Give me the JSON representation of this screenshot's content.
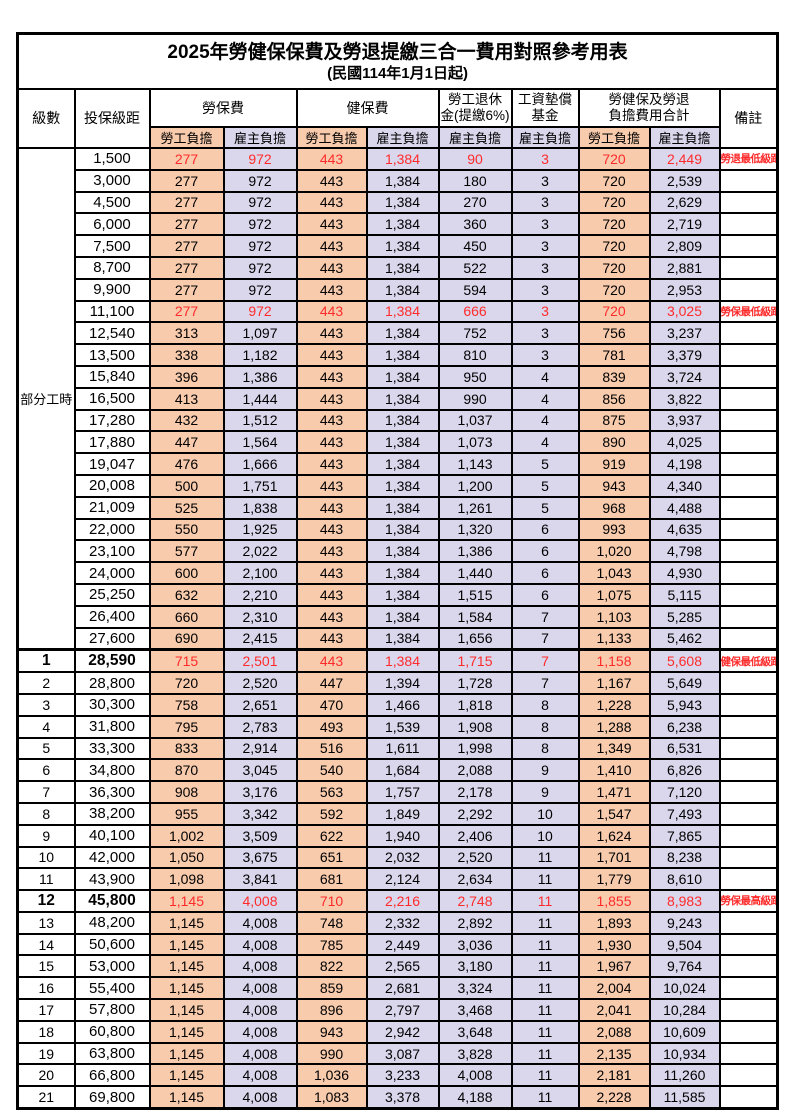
{
  "title": "2025年勞健保保費及勞退提繳三合一費用對照參考用表",
  "subtitle": "(民國114年1月1日起)",
  "colors": {
    "employee_bg": "#F8CBAD",
    "employer_bg": "#DAD7EC",
    "highlight_text": "#FF2B2B",
    "border": "#000000"
  },
  "header": {
    "level": "級數",
    "bracket": "投保級距",
    "labor_ins": "勞保費",
    "health_ins": "健保費",
    "pension_line1": "勞工退休",
    "pension_line2": "金(提繳6%)",
    "wage_fund_line1": "工資墊償",
    "wage_fund_line2": "基金",
    "total_line1": "勞健保及勞退",
    "total_line2": "負擔費用合計",
    "remark": "備註",
    "employee": "勞工負擔",
    "employer": "雇主負擔"
  },
  "part_time_label": "部分工時",
  "part_time_span": 23,
  "chart_data": {
    "type": "table",
    "title": "2025年勞健保保費及勞退提繳三合一費用對照參考用表 (民國114年1月1日起)",
    "columns": [
      "級數",
      "投保級距",
      "勞保費-勞工負擔",
      "勞保費-雇主負擔",
      "健保費-勞工負擔",
      "健保費-雇主負擔",
      "勞工退休金(提繳6%)-雇主負擔",
      "工資墊償基金-雇主負擔",
      "合計-勞工負擔",
      "合計-雇主負擔",
      "備註"
    ]
  },
  "rows": [
    {
      "level": "",
      "bracket": "1,500",
      "li_emp": "277",
      "li_er": "972",
      "hi_emp": "443",
      "hi_er": "1,384",
      "pension": "90",
      "fund": "3",
      "tot_emp": "720",
      "tot_er": "2,449",
      "remark": "勞退最低級距",
      "red": true,
      "bold": false,
      "thick": false
    },
    {
      "level": "",
      "bracket": "3,000",
      "li_emp": "277",
      "li_er": "972",
      "hi_emp": "443",
      "hi_er": "1,384",
      "pension": "180",
      "fund": "3",
      "tot_emp": "720",
      "tot_er": "2,539",
      "remark": "",
      "red": false,
      "bold": false,
      "thick": false
    },
    {
      "level": "",
      "bracket": "4,500",
      "li_emp": "277",
      "li_er": "972",
      "hi_emp": "443",
      "hi_er": "1,384",
      "pension": "270",
      "fund": "3",
      "tot_emp": "720",
      "tot_er": "2,629",
      "remark": "",
      "red": false,
      "bold": false,
      "thick": false
    },
    {
      "level": "",
      "bracket": "6,000",
      "li_emp": "277",
      "li_er": "972",
      "hi_emp": "443",
      "hi_er": "1,384",
      "pension": "360",
      "fund": "3",
      "tot_emp": "720",
      "tot_er": "2,719",
      "remark": "",
      "red": false,
      "bold": false,
      "thick": false
    },
    {
      "level": "",
      "bracket": "7,500",
      "li_emp": "277",
      "li_er": "972",
      "hi_emp": "443",
      "hi_er": "1,384",
      "pension": "450",
      "fund": "3",
      "tot_emp": "720",
      "tot_er": "2,809",
      "remark": "",
      "red": false,
      "bold": false,
      "thick": false
    },
    {
      "level": "",
      "bracket": "8,700",
      "li_emp": "277",
      "li_er": "972",
      "hi_emp": "443",
      "hi_er": "1,384",
      "pension": "522",
      "fund": "3",
      "tot_emp": "720",
      "tot_er": "2,881",
      "remark": "",
      "red": false,
      "bold": false,
      "thick": false
    },
    {
      "level": "",
      "bracket": "9,900",
      "li_emp": "277",
      "li_er": "972",
      "hi_emp": "443",
      "hi_er": "1,384",
      "pension": "594",
      "fund": "3",
      "tot_emp": "720",
      "tot_er": "2,953",
      "remark": "",
      "red": false,
      "bold": false,
      "thick": false
    },
    {
      "level": "",
      "bracket": "11,100",
      "li_emp": "277",
      "li_er": "972",
      "hi_emp": "443",
      "hi_er": "1,384",
      "pension": "666",
      "fund": "3",
      "tot_emp": "720",
      "tot_er": "3,025",
      "remark": "勞保最低級距",
      "red": true,
      "bold": false,
      "thick": false
    },
    {
      "level": "",
      "bracket": "12,540",
      "li_emp": "313",
      "li_er": "1,097",
      "hi_emp": "443",
      "hi_er": "1,384",
      "pension": "752",
      "fund": "3",
      "tot_emp": "756",
      "tot_er": "3,237",
      "remark": "",
      "red": false,
      "bold": false,
      "thick": false
    },
    {
      "level": "",
      "bracket": "13,500",
      "li_emp": "338",
      "li_er": "1,182",
      "hi_emp": "443",
      "hi_er": "1,384",
      "pension": "810",
      "fund": "3",
      "tot_emp": "781",
      "tot_er": "3,379",
      "remark": "",
      "red": false,
      "bold": false,
      "thick": false
    },
    {
      "level": "",
      "bracket": "15,840",
      "li_emp": "396",
      "li_er": "1,386",
      "hi_emp": "443",
      "hi_er": "1,384",
      "pension": "950",
      "fund": "4",
      "tot_emp": "839",
      "tot_er": "3,724",
      "remark": "",
      "red": false,
      "bold": false,
      "thick": false
    },
    {
      "level": "",
      "bracket": "16,500",
      "li_emp": "413",
      "li_er": "1,444",
      "hi_emp": "443",
      "hi_er": "1,384",
      "pension": "990",
      "fund": "4",
      "tot_emp": "856",
      "tot_er": "3,822",
      "remark": "",
      "red": false,
      "bold": false,
      "thick": false
    },
    {
      "level": "",
      "bracket": "17,280",
      "li_emp": "432",
      "li_er": "1,512",
      "hi_emp": "443",
      "hi_er": "1,384",
      "pension": "1,037",
      "fund": "4",
      "tot_emp": "875",
      "tot_er": "3,937",
      "remark": "",
      "red": false,
      "bold": false,
      "thick": false
    },
    {
      "level": "",
      "bracket": "17,880",
      "li_emp": "447",
      "li_er": "1,564",
      "hi_emp": "443",
      "hi_er": "1,384",
      "pension": "1,073",
      "fund": "4",
      "tot_emp": "890",
      "tot_er": "4,025",
      "remark": "",
      "red": false,
      "bold": false,
      "thick": false
    },
    {
      "level": "",
      "bracket": "19,047",
      "li_emp": "476",
      "li_er": "1,666",
      "hi_emp": "443",
      "hi_er": "1,384",
      "pension": "1,143",
      "fund": "5",
      "tot_emp": "919",
      "tot_er": "4,198",
      "remark": "",
      "red": false,
      "bold": false,
      "thick": false
    },
    {
      "level": "",
      "bracket": "20,008",
      "li_emp": "500",
      "li_er": "1,751",
      "hi_emp": "443",
      "hi_er": "1,384",
      "pension": "1,200",
      "fund": "5",
      "tot_emp": "943",
      "tot_er": "4,340",
      "remark": "",
      "red": false,
      "bold": false,
      "thick": false
    },
    {
      "level": "",
      "bracket": "21,009",
      "li_emp": "525",
      "li_er": "1,838",
      "hi_emp": "443",
      "hi_er": "1,384",
      "pension": "1,261",
      "fund": "5",
      "tot_emp": "968",
      "tot_er": "4,488",
      "remark": "",
      "red": false,
      "bold": false,
      "thick": false
    },
    {
      "level": "",
      "bracket": "22,000",
      "li_emp": "550",
      "li_er": "1,925",
      "hi_emp": "443",
      "hi_er": "1,384",
      "pension": "1,320",
      "fund": "6",
      "tot_emp": "993",
      "tot_er": "4,635",
      "remark": "",
      "red": false,
      "bold": false,
      "thick": false
    },
    {
      "level": "",
      "bracket": "23,100",
      "li_emp": "577",
      "li_er": "2,022",
      "hi_emp": "443",
      "hi_er": "1,384",
      "pension": "1,386",
      "fund": "6",
      "tot_emp": "1,020",
      "tot_er": "4,798",
      "remark": "",
      "red": false,
      "bold": false,
      "thick": false
    },
    {
      "level": "",
      "bracket": "24,000",
      "li_emp": "600",
      "li_er": "2,100",
      "hi_emp": "443",
      "hi_er": "1,384",
      "pension": "1,440",
      "fund": "6",
      "tot_emp": "1,043",
      "tot_er": "4,930",
      "remark": "",
      "red": false,
      "bold": false,
      "thick": false
    },
    {
      "level": "",
      "bracket": "25,250",
      "li_emp": "632",
      "li_er": "2,210",
      "hi_emp": "443",
      "hi_er": "1,384",
      "pension": "1,515",
      "fund": "6",
      "tot_emp": "1,075",
      "tot_er": "5,115",
      "remark": "",
      "red": false,
      "bold": false,
      "thick": false
    },
    {
      "level": "",
      "bracket": "26,400",
      "li_emp": "660",
      "li_er": "2,310",
      "hi_emp": "443",
      "hi_er": "1,384",
      "pension": "1,584",
      "fund": "7",
      "tot_emp": "1,103",
      "tot_er": "5,285",
      "remark": "",
      "red": false,
      "bold": false,
      "thick": false
    },
    {
      "level": "",
      "bracket": "27,600",
      "li_emp": "690",
      "li_er": "2,415",
      "hi_emp": "443",
      "hi_er": "1,384",
      "pension": "1,656",
      "fund": "7",
      "tot_emp": "1,133",
      "tot_er": "5,462",
      "remark": "",
      "red": false,
      "bold": false,
      "thick": false
    },
    {
      "level": "1",
      "bracket": "28,590",
      "li_emp": "715",
      "li_er": "2,501",
      "hi_emp": "443",
      "hi_er": "1,384",
      "pension": "1,715",
      "fund": "7",
      "tot_emp": "1,158",
      "tot_er": "5,608",
      "remark": "健保最低級距",
      "red": true,
      "bold": true,
      "thick": true
    },
    {
      "level": "2",
      "bracket": "28,800",
      "li_emp": "720",
      "li_er": "2,520",
      "hi_emp": "447",
      "hi_er": "1,394",
      "pension": "1,728",
      "fund": "7",
      "tot_emp": "1,167",
      "tot_er": "5,649",
      "remark": "",
      "red": false,
      "bold": false,
      "thick": false
    },
    {
      "level": "3",
      "bracket": "30,300",
      "li_emp": "758",
      "li_er": "2,651",
      "hi_emp": "470",
      "hi_er": "1,466",
      "pension": "1,818",
      "fund": "8",
      "tot_emp": "1,228",
      "tot_er": "5,943",
      "remark": "",
      "red": false,
      "bold": false,
      "thick": false
    },
    {
      "level": "4",
      "bracket": "31,800",
      "li_emp": "795",
      "li_er": "2,783",
      "hi_emp": "493",
      "hi_er": "1,539",
      "pension": "1,908",
      "fund": "8",
      "tot_emp": "1,288",
      "tot_er": "6,238",
      "remark": "",
      "red": false,
      "bold": false,
      "thick": false
    },
    {
      "level": "5",
      "bracket": "33,300",
      "li_emp": "833",
      "li_er": "2,914",
      "hi_emp": "516",
      "hi_er": "1,611",
      "pension": "1,998",
      "fund": "8",
      "tot_emp": "1,349",
      "tot_er": "6,531",
      "remark": "",
      "red": false,
      "bold": false,
      "thick": false
    },
    {
      "level": "6",
      "bracket": "34,800",
      "li_emp": "870",
      "li_er": "3,045",
      "hi_emp": "540",
      "hi_er": "1,684",
      "pension": "2,088",
      "fund": "9",
      "tot_emp": "1,410",
      "tot_er": "6,826",
      "remark": "",
      "red": false,
      "bold": false,
      "thick": false
    },
    {
      "level": "7",
      "bracket": "36,300",
      "li_emp": "908",
      "li_er": "3,176",
      "hi_emp": "563",
      "hi_er": "1,757",
      "pension": "2,178",
      "fund": "9",
      "tot_emp": "1,471",
      "tot_er": "7,120",
      "remark": "",
      "red": false,
      "bold": false,
      "thick": false
    },
    {
      "level": "8",
      "bracket": "38,200",
      "li_emp": "955",
      "li_er": "3,342",
      "hi_emp": "592",
      "hi_er": "1,849",
      "pension": "2,292",
      "fund": "10",
      "tot_emp": "1,547",
      "tot_er": "7,493",
      "remark": "",
      "red": false,
      "bold": false,
      "thick": false
    },
    {
      "level": "9",
      "bracket": "40,100",
      "li_emp": "1,002",
      "li_er": "3,509",
      "hi_emp": "622",
      "hi_er": "1,940",
      "pension": "2,406",
      "fund": "10",
      "tot_emp": "1,624",
      "tot_er": "7,865",
      "remark": "",
      "red": false,
      "bold": false,
      "thick": false
    },
    {
      "level": "10",
      "bracket": "42,000",
      "li_emp": "1,050",
      "li_er": "3,675",
      "hi_emp": "651",
      "hi_er": "2,032",
      "pension": "2,520",
      "fund": "11",
      "tot_emp": "1,701",
      "tot_er": "8,238",
      "remark": "",
      "red": false,
      "bold": false,
      "thick": false
    },
    {
      "level": "11",
      "bracket": "43,900",
      "li_emp": "1,098",
      "li_er": "3,841",
      "hi_emp": "681",
      "hi_er": "2,124",
      "pension": "2,634",
      "fund": "11",
      "tot_emp": "1,779",
      "tot_er": "8,610",
      "remark": "",
      "red": false,
      "bold": false,
      "thick": false
    },
    {
      "level": "12",
      "bracket": "45,800",
      "li_emp": "1,145",
      "li_er": "4,008",
      "hi_emp": "710",
      "hi_er": "2,216",
      "pension": "2,748",
      "fund": "11",
      "tot_emp": "1,855",
      "tot_er": "8,983",
      "remark": "勞保最高級距",
      "red": true,
      "bold": true,
      "thick": false
    },
    {
      "level": "13",
      "bracket": "48,200",
      "li_emp": "1,145",
      "li_er": "4,008",
      "hi_emp": "748",
      "hi_er": "2,332",
      "pension": "2,892",
      "fund": "11",
      "tot_emp": "1,893",
      "tot_er": "9,243",
      "remark": "",
      "red": false,
      "bold": false,
      "thick": false
    },
    {
      "level": "14",
      "bracket": "50,600",
      "li_emp": "1,145",
      "li_er": "4,008",
      "hi_emp": "785",
      "hi_er": "2,449",
      "pension": "3,036",
      "fund": "11",
      "tot_emp": "1,930",
      "tot_er": "9,504",
      "remark": "",
      "red": false,
      "bold": false,
      "thick": false
    },
    {
      "level": "15",
      "bracket": "53,000",
      "li_emp": "1,145",
      "li_er": "4,008",
      "hi_emp": "822",
      "hi_er": "2,565",
      "pension": "3,180",
      "fund": "11",
      "tot_emp": "1,967",
      "tot_er": "9,764",
      "remark": "",
      "red": false,
      "bold": false,
      "thick": false
    },
    {
      "level": "16",
      "bracket": "55,400",
      "li_emp": "1,145",
      "li_er": "4,008",
      "hi_emp": "859",
      "hi_er": "2,681",
      "pension": "3,324",
      "fund": "11",
      "tot_emp": "2,004",
      "tot_er": "10,024",
      "remark": "",
      "red": false,
      "bold": false,
      "thick": false
    },
    {
      "level": "17",
      "bracket": "57,800",
      "li_emp": "1,145",
      "li_er": "4,008",
      "hi_emp": "896",
      "hi_er": "2,797",
      "pension": "3,468",
      "fund": "11",
      "tot_emp": "2,041",
      "tot_er": "10,284",
      "remark": "",
      "red": false,
      "bold": false,
      "thick": false
    },
    {
      "level": "18",
      "bracket": "60,800",
      "li_emp": "1,145",
      "li_er": "4,008",
      "hi_emp": "943",
      "hi_er": "2,942",
      "pension": "3,648",
      "fund": "11",
      "tot_emp": "2,088",
      "tot_er": "10,609",
      "remark": "",
      "red": false,
      "bold": false,
      "thick": false
    },
    {
      "level": "19",
      "bracket": "63,800",
      "li_emp": "1,145",
      "li_er": "4,008",
      "hi_emp": "990",
      "hi_er": "3,087",
      "pension": "3,828",
      "fund": "11",
      "tot_emp": "2,135",
      "tot_er": "10,934",
      "remark": "",
      "red": false,
      "bold": false,
      "thick": false
    },
    {
      "level": "20",
      "bracket": "66,800",
      "li_emp": "1,145",
      "li_er": "4,008",
      "hi_emp": "1,036",
      "hi_er": "3,233",
      "pension": "4,008",
      "fund": "11",
      "tot_emp": "2,181",
      "tot_er": "11,260",
      "remark": "",
      "red": false,
      "bold": false,
      "thick": false
    },
    {
      "level": "21",
      "bracket": "69,800",
      "li_emp": "1,145",
      "li_er": "4,008",
      "hi_emp": "1,083",
      "hi_er": "3,378",
      "pension": "4,188",
      "fund": "11",
      "tot_emp": "2,228",
      "tot_er": "11,585",
      "remark": "",
      "red": false,
      "bold": false,
      "thick": false
    }
  ]
}
